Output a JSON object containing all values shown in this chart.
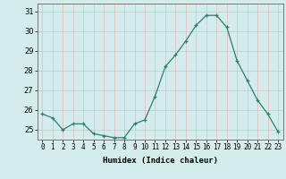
{
  "x": [
    0,
    1,
    2,
    3,
    4,
    5,
    6,
    7,
    8,
    9,
    10,
    11,
    12,
    13,
    14,
    15,
    16,
    17,
    18,
    19,
    20,
    21,
    22,
    23
  ],
  "y": [
    25.8,
    25.6,
    25.0,
    25.3,
    25.3,
    24.8,
    24.7,
    24.6,
    24.6,
    25.3,
    25.5,
    26.7,
    28.2,
    28.8,
    29.5,
    30.3,
    30.8,
    30.8,
    30.2,
    28.5,
    27.5,
    26.5,
    25.8,
    24.9
  ],
  "xlabel": "Humidex (Indice chaleur)",
  "ylim": [
    24.5,
    31.4
  ],
  "xlim": [
    -0.5,
    23.5
  ],
  "line_color": "#2e7d6e",
  "marker_color": "#2e7d6e",
  "bg_color": "#d4edec",
  "grid_color": "#e8b8b8",
  "yticks": [
    25,
    26,
    27,
    28,
    29,
    30,
    31
  ],
  "xticks": [
    0,
    1,
    2,
    3,
    4,
    5,
    6,
    7,
    8,
    9,
    10,
    11,
    12,
    13,
    14,
    15,
    16,
    17,
    18,
    19,
    20,
    21,
    22,
    23
  ],
  "tick_fontsize": 5.5,
  "xlabel_fontsize": 6.5
}
